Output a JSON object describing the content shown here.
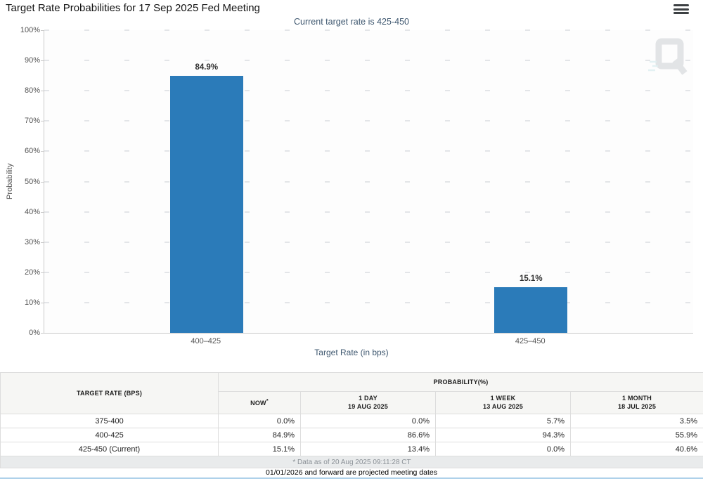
{
  "header": {
    "title": "Target Rate Probabilities for 17 Sep 2025 Fed Meeting"
  },
  "chart_data": {
    "type": "bar",
    "title": "Target Rate Probabilities for 17 Sep 2025 Fed Meeting",
    "subtitle": "Current target rate is 425-450",
    "categories": [
      "400–425",
      "425–450"
    ],
    "values": [
      84.9,
      15.1
    ],
    "value_labels": [
      "84.9%",
      "15.1%"
    ],
    "xlabel": "Target Rate (in bps)",
    "ylabel": "Probability",
    "ylim": [
      0,
      100
    ],
    "ytick_step": 10,
    "ytick_suffix": "%",
    "grid": "dotted-horizontal",
    "legend": "none"
  },
  "watermark": {
    "icon": "quikstrike-q-logo"
  },
  "table": {
    "col1_header": "TARGET RATE (BPS)",
    "group_header": "PROBABILITY(%)",
    "subcolumns": [
      {
        "line1": "NOW",
        "sup": "*",
        "line2": ""
      },
      {
        "line1": "1 DAY",
        "sup": "",
        "line2": "19 AUG 2025"
      },
      {
        "line1": "1 WEEK",
        "sup": "",
        "line2": "13 AUG 2025"
      },
      {
        "line1": "1 MONTH",
        "sup": "",
        "line2": "18 JUL 2025"
      }
    ],
    "rows": [
      {
        "target_rate": "375-400",
        "values": [
          "0.0%",
          "0.0%",
          "5.7%",
          "3.5%"
        ]
      },
      {
        "target_rate": "400-425",
        "values": [
          "84.9%",
          "86.6%",
          "94.3%",
          "55.9%"
        ]
      },
      {
        "target_rate": "425-450 (Current)",
        "values": [
          "15.1%",
          "13.4%",
          "0.0%",
          "40.6%"
        ]
      }
    ],
    "footnote": "* Data as of 20 Aug 2025 09:11:28 CT"
  },
  "footer": {
    "note": "01/01/2026 and forward are projected meeting dates"
  },
  "colors": {
    "bar": "#2b7bb9",
    "now_column_bg": "#fbf8d8",
    "axis_title_text": "#3e576f",
    "footnote_bg": "#e9ebec",
    "bottom_accent_line": "#aed1ea"
  }
}
